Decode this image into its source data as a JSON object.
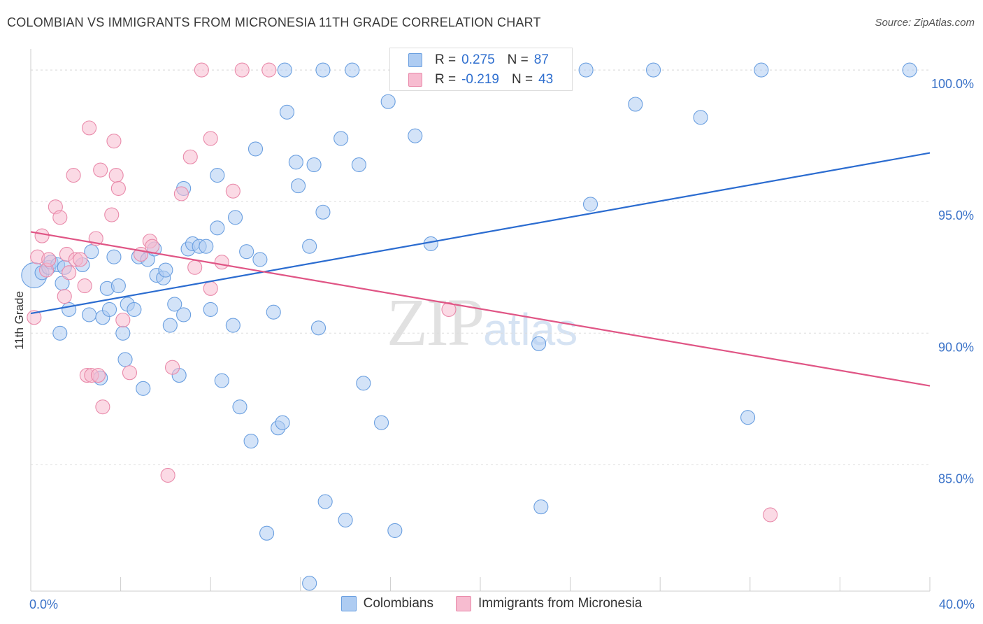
{
  "header": {
    "title": "COLOMBIAN VS IMMIGRANTS FROM MICRONESIA 11TH GRADE CORRELATION CHART",
    "source": "Source: ZipAtlas.com"
  },
  "watermark": {
    "zip": "ZIP",
    "atlas": "atlas"
  },
  "legend": {
    "rows": [
      {
        "r_label": "R =",
        "r_value": "0.275",
        "n_label": "N =",
        "n_value": "87"
      },
      {
        "r_label": "R =",
        "r_value": "-0.219",
        "n_label": "N =",
        "n_value": "43"
      }
    ]
  },
  "bottom_legend": {
    "series_a": "Colombians",
    "series_b": "Immigrants from Micronesia"
  },
  "colors": {
    "blue_fill": "#aeccf2",
    "blue_stroke": "#6a9fe0",
    "blue_line": "#2b6cd0",
    "pink_fill": "#f7bcd0",
    "pink_stroke": "#e98aaa",
    "pink_line": "#e05585",
    "tick_label": "#3a72c8",
    "grid": "#dddddd"
  },
  "chart_data": {
    "type": "scatter",
    "title": "COLOMBIAN VS IMMIGRANTS FROM MICRONESIA 11TH GRADE CORRELATION CHART",
    "xlabel": "",
    "ylabel": "11th Grade",
    "xlim": [
      0,
      40
    ],
    "ylim": [
      80.2,
      100.8
    ],
    "x_tick_labels": [
      {
        "value": 0,
        "label": "0.0%"
      },
      {
        "value": 40,
        "label": "40.0%"
      }
    ],
    "y_tick_labels": [
      {
        "value": 100,
        "label": "100.0%"
      },
      {
        "value": 95,
        "label": "95.0%"
      },
      {
        "value": 90,
        "label": "90.0%"
      },
      {
        "value": 85,
        "label": "85.0%"
      }
    ],
    "x_minor_ticks": [
      0,
      4,
      8,
      12,
      16,
      20,
      24,
      28,
      32,
      36,
      40
    ],
    "series": [
      {
        "name": "Colombians",
        "color": "blue",
        "trend": {
          "x": [
            0,
            40
          ],
          "y": [
            90.75,
            96.85
          ]
        },
        "points": [
          [
            0.15,
            92.2,
            18
          ],
          [
            0.5,
            92.3,
            10
          ],
          [
            0.8,
            92.5,
            10
          ],
          [
            0.9,
            92.7,
            10
          ],
          [
            1.2,
            92.6,
            10
          ],
          [
            1.5,
            92.5,
            10
          ],
          [
            1.4,
            91.9,
            10
          ],
          [
            1.7,
            90.9,
            10
          ],
          [
            1.3,
            90.0,
            10
          ],
          [
            2.6,
            90.7,
            10
          ],
          [
            2.3,
            92.6,
            10
          ],
          [
            2.7,
            93.1,
            10
          ],
          [
            3.1,
            88.3,
            10
          ],
          [
            3.2,
            90.6,
            10
          ],
          [
            3.4,
            91.7,
            10
          ],
          [
            3.5,
            90.9,
            10
          ],
          [
            3.7,
            92.9,
            10
          ],
          [
            3.9,
            91.8,
            10
          ],
          [
            4.1,
            90.0,
            10
          ],
          [
            4.2,
            89.0,
            10
          ],
          [
            4.3,
            91.1,
            10
          ],
          [
            4.6,
            90.9,
            10
          ],
          [
            4.8,
            92.9,
            10
          ],
          [
            5.0,
            87.9,
            10
          ],
          [
            5.2,
            92.8,
            10
          ],
          [
            5.5,
            93.2,
            10
          ],
          [
            5.6,
            92.2,
            10
          ],
          [
            5.9,
            92.1,
            10
          ],
          [
            6.0,
            92.4,
            10
          ],
          [
            6.2,
            90.3,
            10
          ],
          [
            6.4,
            91.1,
            10
          ],
          [
            6.6,
            88.4,
            10
          ],
          [
            6.8,
            90.7,
            10
          ],
          [
            6.8,
            95.5,
            10
          ],
          [
            7.0,
            93.2,
            10
          ],
          [
            7.2,
            93.4,
            10
          ],
          [
            7.5,
            93.3,
            10
          ],
          [
            7.8,
            93.3,
            10
          ],
          [
            8.0,
            90.9,
            10
          ],
          [
            8.3,
            96.0,
            10
          ],
          [
            8.3,
            94.0,
            10
          ],
          [
            8.5,
            88.2,
            10
          ],
          [
            9.0,
            90.3,
            10
          ],
          [
            9.1,
            94.4,
            10
          ],
          [
            9.3,
            87.2,
            10
          ],
          [
            9.6,
            93.1,
            10
          ],
          [
            9.8,
            85.9,
            10
          ],
          [
            10.0,
            97.0,
            10
          ],
          [
            10.2,
            92.8,
            10
          ],
          [
            10.5,
            82.4,
            10
          ],
          [
            10.8,
            90.8,
            10
          ],
          [
            11.0,
            86.4,
            10
          ],
          [
            11.2,
            86.6,
            10
          ],
          [
            11.3,
            100.0,
            10
          ],
          [
            11.4,
            98.4,
            10
          ],
          [
            11.8,
            96.5,
            10
          ],
          [
            11.9,
            95.6,
            10
          ],
          [
            12.4,
            93.3,
            10
          ],
          [
            12.4,
            80.5,
            10
          ],
          [
            12.6,
            96.4,
            10
          ],
          [
            12.8,
            90.2,
            10
          ],
          [
            13.0,
            94.6,
            10
          ],
          [
            13.1,
            83.6,
            10
          ],
          [
            13.0,
            100.0,
            10
          ],
          [
            13.8,
            97.4,
            10
          ],
          [
            14.0,
            82.9,
            10
          ],
          [
            14.3,
            100.0,
            10
          ],
          [
            14.6,
            96.4,
            10
          ],
          [
            14.8,
            88.1,
            10
          ],
          [
            15.6,
            86.6,
            10
          ],
          [
            15.9,
            98.8,
            10
          ],
          [
            16.2,
            82.5,
            10
          ],
          [
            17.1,
            97.5,
            10
          ],
          [
            17.8,
            93.4,
            10
          ],
          [
            22.6,
            89.6,
            10
          ],
          [
            22.7,
            83.4,
            10
          ],
          [
            24.7,
            100.0,
            10
          ],
          [
            24.9,
            94.9,
            10
          ],
          [
            26.9,
            98.7,
            10
          ],
          [
            27.7,
            100.0,
            10
          ],
          [
            29.8,
            98.2,
            10
          ],
          [
            31.9,
            86.8,
            10
          ],
          [
            32.5,
            100.0,
            10
          ],
          [
            39.1,
            100.0,
            10
          ]
        ]
      },
      {
        "name": "Immigrants from Micronesia",
        "color": "pink",
        "trend": {
          "x": [
            0,
            40
          ],
          "y": [
            93.85,
            88.0
          ]
        },
        "points": [
          [
            0.15,
            90.6,
            10
          ],
          [
            0.3,
            92.9,
            10
          ],
          [
            0.5,
            93.7,
            10
          ],
          [
            0.7,
            92.4,
            10
          ],
          [
            0.8,
            92.8,
            10
          ],
          [
            1.1,
            94.8,
            10
          ],
          [
            1.3,
            94.4,
            10
          ],
          [
            1.5,
            91.4,
            10
          ],
          [
            1.6,
            93.0,
            10
          ],
          [
            1.7,
            92.3,
            10
          ],
          [
            1.9,
            96.0,
            10
          ],
          [
            2.0,
            92.8,
            10
          ],
          [
            2.2,
            92.8,
            10
          ],
          [
            2.4,
            91.8,
            10
          ],
          [
            2.5,
            88.4,
            10
          ],
          [
            2.6,
            97.8,
            10
          ],
          [
            2.7,
            88.4,
            10
          ],
          [
            2.9,
            93.6,
            10
          ],
          [
            3.0,
            88.4,
            10
          ],
          [
            3.1,
            96.2,
            10
          ],
          [
            3.2,
            87.2,
            10
          ],
          [
            3.6,
            94.5,
            10
          ],
          [
            3.7,
            97.3,
            10
          ],
          [
            3.8,
            96.0,
            10
          ],
          [
            3.9,
            95.5,
            10
          ],
          [
            4.1,
            90.5,
            10
          ],
          [
            4.4,
            88.5,
            10
          ],
          [
            4.9,
            93.0,
            10
          ],
          [
            5.3,
            93.5,
            10
          ],
          [
            5.4,
            93.3,
            10
          ],
          [
            6.1,
            84.6,
            10
          ],
          [
            6.3,
            88.7,
            10
          ],
          [
            6.7,
            95.3,
            10
          ],
          [
            7.1,
            96.7,
            10
          ],
          [
            7.3,
            92.5,
            10
          ],
          [
            7.6,
            100.0,
            10
          ],
          [
            8.0,
            91.7,
            10
          ],
          [
            8.0,
            97.4,
            10
          ],
          [
            8.5,
            92.7,
            10
          ],
          [
            9.0,
            95.4,
            10
          ],
          [
            9.4,
            100.0,
            10
          ],
          [
            10.6,
            100.0,
            10
          ],
          [
            18.6,
            90.9,
            10
          ],
          [
            32.9,
            83.1,
            10
          ]
        ]
      }
    ]
  }
}
